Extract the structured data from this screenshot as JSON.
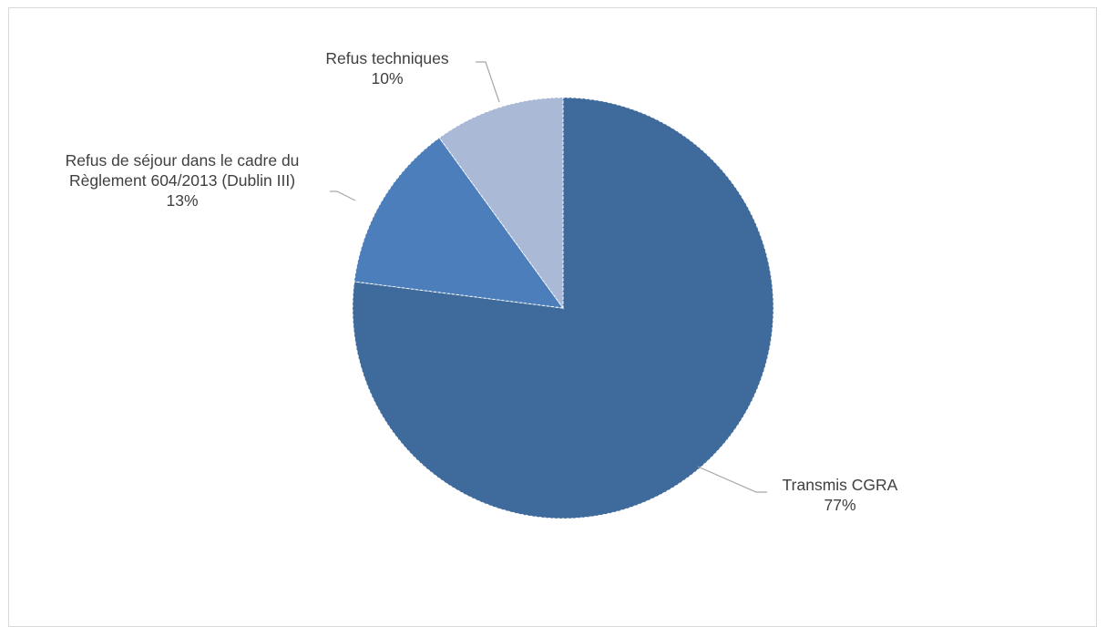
{
  "chart_data": {
    "type": "pie",
    "title": "",
    "start_angle_deg": 0,
    "direction": "clockwise",
    "slices": [
      {
        "label_lines": [
          "Transmis CGRA"
        ],
        "value": 77,
        "value_label": "77%",
        "color": "#3f6a9c"
      },
      {
        "label_lines": [
          "Refus de séjour dans le cadre du",
          "Règlement 604/2013 (Dublin III)"
        ],
        "value": 13,
        "value_label": "13%",
        "color": "#4b7ebb"
      },
      {
        "label_lines": [
          "Refus techniques"
        ],
        "value": 10,
        "value_label": "10%",
        "color": "#aab9d6"
      }
    ],
    "legend": "none",
    "leader_line_color": "#a6a6a6",
    "slice_border_color": "#ffffff"
  }
}
